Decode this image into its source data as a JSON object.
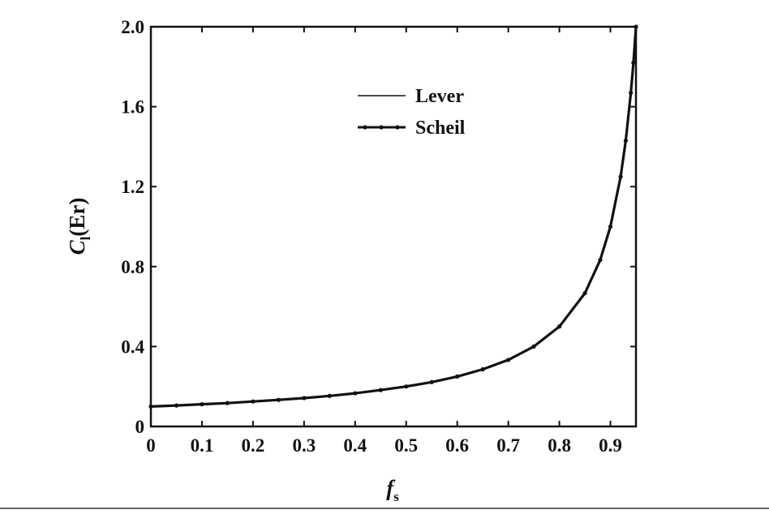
{
  "chart_data": {
    "type": "line",
    "xlabel": "f",
    "xlabel_sub": "s",
    "ylabel": "C",
    "ylabel_sub": "l",
    "ylabel_suffix": "(Er)",
    "xlim": [
      0,
      0.95
    ],
    "ylim": [
      0,
      2.0
    ],
    "x_ticks": [
      "0",
      "0.1",
      "0.2",
      "0.3",
      "0.4",
      "0.5",
      "0.6",
      "0.7",
      "0.8",
      "0.9"
    ],
    "x_tick_values": [
      0,
      0.1,
      0.2,
      0.3,
      0.4,
      0.5,
      0.6,
      0.7,
      0.8,
      0.9
    ],
    "y_ticks": [
      "0",
      "0.4",
      "0.8",
      "1.2",
      "1.6",
      "2.0"
    ],
    "y_tick_values": [
      0,
      0.4,
      0.8,
      1.2,
      1.6,
      2.0
    ],
    "legend_position": "top-center",
    "grid": false,
    "series": [
      {
        "name": "Lever",
        "style": "solid-line",
        "x": [
          0,
          0.05,
          0.1,
          0.15,
          0.2,
          0.25,
          0.3,
          0.35,
          0.4,
          0.45,
          0.5,
          0.55,
          0.6,
          0.65,
          0.7,
          0.75,
          0.8,
          0.85,
          0.88,
          0.9,
          0.92,
          0.93,
          0.94,
          0.945,
          0.95
        ],
        "y": [
          0.1,
          0.105,
          0.111,
          0.117,
          0.125,
          0.133,
          0.142,
          0.153,
          0.166,
          0.182,
          0.2,
          0.222,
          0.25,
          0.286,
          0.333,
          0.4,
          0.5,
          0.667,
          0.833,
          1.0,
          1.25,
          1.43,
          1.67,
          1.82,
          2.0
        ]
      },
      {
        "name": "Scheil",
        "style": "line-with-dots",
        "x": [
          0,
          0.05,
          0.1,
          0.15,
          0.2,
          0.25,
          0.3,
          0.35,
          0.4,
          0.45,
          0.5,
          0.55,
          0.6,
          0.65,
          0.7,
          0.75,
          0.8,
          0.85,
          0.88,
          0.9,
          0.92,
          0.93,
          0.94,
          0.945,
          0.95
        ],
        "y": [
          0.1,
          0.105,
          0.111,
          0.117,
          0.125,
          0.133,
          0.142,
          0.153,
          0.166,
          0.182,
          0.2,
          0.222,
          0.25,
          0.286,
          0.333,
          0.4,
          0.5,
          0.667,
          0.833,
          1.0,
          1.25,
          1.43,
          1.67,
          1.82,
          2.0
        ]
      }
    ]
  }
}
